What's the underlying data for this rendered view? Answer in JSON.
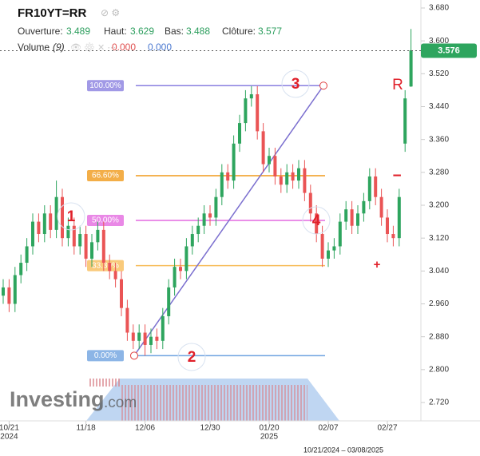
{
  "chart_data": {
    "type": "candlestick",
    "title": "FR10YT=RR",
    "header": {
      "open_label": "Ouverture:",
      "open": 3.489,
      "high_label": "Haut:",
      "high": 3.629,
      "low_label": "Bas:",
      "low": 3.488,
      "close_label": "Clôture:",
      "close": 3.577,
      "volume_label": "Volume",
      "volume_period": "(9)",
      "volume_values": [
        "0.000",
        "0.000"
      ]
    },
    "categories": [
      null,
      "10/21",
      null,
      null,
      null,
      null,
      null,
      null,
      null,
      null,
      null,
      null,
      null,
      null,
      "11/18",
      null,
      null,
      null,
      null,
      null,
      null,
      null,
      null,
      null,
      "12/06",
      null,
      null,
      null,
      null,
      null,
      null,
      null,
      null,
      null,
      null,
      "12/30",
      null,
      null,
      null,
      null,
      null,
      null,
      null,
      null,
      null,
      "01/20",
      null,
      null,
      null,
      null,
      null,
      null,
      null,
      null,
      null,
      "02/07",
      null,
      null,
      null,
      null,
      null,
      null,
      null,
      null,
      null,
      "02/27",
      null,
      null,
      null,
      null
    ],
    "year_labels": [
      "2024",
      "2025"
    ],
    "date_range": "10/21/2024 – 03/08/2025",
    "open": [
      2.98,
      3.0,
      2.96,
      3.03,
      3.06,
      3.1,
      3.16,
      3.13,
      3.18,
      3.14,
      3.22,
      3.12,
      3.15,
      3.1,
      3.13,
      3.07,
      3.11,
      3.14,
      3.06,
      3.04,
      3.02,
      2.95,
      2.89,
      2.87,
      2.89,
      2.86,
      2.88,
      2.87,
      2.93,
      3.0,
      3.05,
      3.04,
      3.1,
      3.13,
      3.15,
      3.18,
      3.17,
      3.22,
      3.28,
      3.26,
      3.35,
      3.4,
      3.46,
      3.47,
      3.38,
      3.3,
      3.32,
      3.27,
      3.25,
      3.28,
      3.26,
      3.29,
      3.23,
      3.18,
      3.13,
      3.07,
      3.09,
      3.1,
      3.16,
      3.19,
      3.15,
      3.18,
      3.21,
      3.27,
      3.22,
      3.17,
      3.13,
      3.12,
      3.35,
      3.489
    ],
    "high": [
      3.02,
      3.02,
      3.05,
      3.08,
      3.12,
      3.18,
      3.18,
      3.2,
      3.2,
      3.26,
      3.24,
      3.17,
      3.17,
      3.15,
      3.15,
      3.13,
      3.16,
      3.16,
      3.08,
      3.06,
      3.04,
      2.97,
      2.91,
      2.91,
      2.91,
      2.9,
      2.9,
      2.95,
      3.02,
      3.07,
      3.07,
      3.12,
      3.15,
      3.17,
      3.2,
      3.2,
      3.24,
      3.3,
      3.3,
      3.37,
      3.42,
      3.48,
      3.49,
      3.49,
      3.4,
      3.34,
      3.34,
      3.29,
      3.3,
      3.3,
      3.31,
      3.31,
      3.25,
      3.2,
      3.15,
      3.11,
      3.12,
      3.18,
      3.21,
      3.21,
      3.2,
      3.23,
      3.29,
      3.29,
      3.24,
      3.19,
      3.15,
      3.24,
      3.48,
      3.629
    ],
    "low": [
      2.96,
      2.94,
      2.94,
      3.01,
      3.04,
      3.08,
      3.11,
      3.11,
      3.12,
      3.12,
      3.1,
      3.1,
      3.08,
      3.08,
      3.05,
      3.05,
      3.09,
      3.04,
      3.02,
      3.0,
      2.93,
      2.87,
      2.85,
      2.85,
      2.834,
      2.84,
      2.85,
      2.85,
      2.91,
      2.98,
      3.02,
      3.02,
      3.08,
      3.11,
      3.13,
      3.15,
      3.15,
      3.2,
      3.24,
      3.24,
      3.33,
      3.38,
      3.44,
      3.36,
      3.28,
      3.28,
      3.25,
      3.23,
      3.23,
      3.24,
      3.24,
      3.21,
      3.16,
      3.11,
      3.05,
      3.05,
      3.07,
      3.08,
      3.14,
      3.13,
      3.13,
      3.16,
      3.19,
      3.2,
      3.15,
      3.11,
      3.1,
      3.1,
      3.33,
      3.488
    ],
    "close": [
      3.0,
      2.96,
      3.03,
      3.06,
      3.1,
      3.16,
      3.13,
      3.18,
      3.14,
      3.22,
      3.12,
      3.15,
      3.1,
      3.13,
      3.07,
      3.11,
      3.14,
      3.06,
      3.04,
      3.02,
      2.95,
      2.89,
      2.87,
      2.89,
      2.86,
      2.88,
      2.87,
      2.93,
      3.0,
      3.05,
      3.04,
      3.1,
      3.13,
      3.15,
      3.18,
      3.17,
      3.22,
      3.28,
      3.26,
      3.35,
      3.4,
      3.46,
      3.47,
      3.38,
      3.3,
      3.32,
      3.27,
      3.25,
      3.28,
      3.26,
      3.29,
      3.23,
      3.18,
      3.13,
      3.07,
      3.09,
      3.1,
      3.16,
      3.19,
      3.15,
      3.18,
      3.21,
      3.27,
      3.22,
      3.17,
      3.13,
      3.12,
      3.22,
      3.46,
      3.577
    ],
    "up_color": "#2ea55e",
    "down_color": "#ea5455",
    "ylim": [
      2.68,
      3.72
    ],
    "yticks": [
      {
        "value": 2.72,
        "label": "2.720"
      },
      {
        "value": 2.8,
        "label": "2.800"
      },
      {
        "value": 2.88,
        "label": "2.880"
      },
      {
        "value": 2.96,
        "label": "2.960"
      },
      {
        "value": 3.04,
        "label": "3.040"
      },
      {
        "value": 3.12,
        "label": "3.120"
      },
      {
        "value": 3.2,
        "label": "3.200"
      },
      {
        "value": 3.28,
        "label": "3.280"
      },
      {
        "value": 3.36,
        "label": "3.360"
      },
      {
        "value": 3.44,
        "label": "3.440"
      },
      {
        "value": 3.52,
        "label": "3.520"
      },
      {
        "value": 3.6,
        "label": "3.600"
      },
      {
        "value": 3.68,
        "label": "3.680"
      }
    ],
    "last_price": 3.576,
    "last_price_color": "#2ea55e",
    "fib_levels": [
      {
        "label": "100.00%",
        "value": 3.491,
        "color": "#8a7fe0"
      },
      {
        "label": "66.60%",
        "value": 3.272,
        "color": "#f09a1a"
      },
      {
        "label": "50.00%",
        "value": 3.163,
        "color": "#e46ae0"
      },
      {
        "label": "33.30%",
        "value": 3.053,
        "color": "#f7bd5a"
      },
      {
        "label": "0.00%",
        "value": 2.834,
        "color": "#6fa3e0"
      }
    ],
    "annotations": [
      "1",
      "2",
      "3",
      "4",
      "R",
      "−",
      "+"
    ],
    "watermark": [
      "Investing",
      ".com"
    ]
  }
}
